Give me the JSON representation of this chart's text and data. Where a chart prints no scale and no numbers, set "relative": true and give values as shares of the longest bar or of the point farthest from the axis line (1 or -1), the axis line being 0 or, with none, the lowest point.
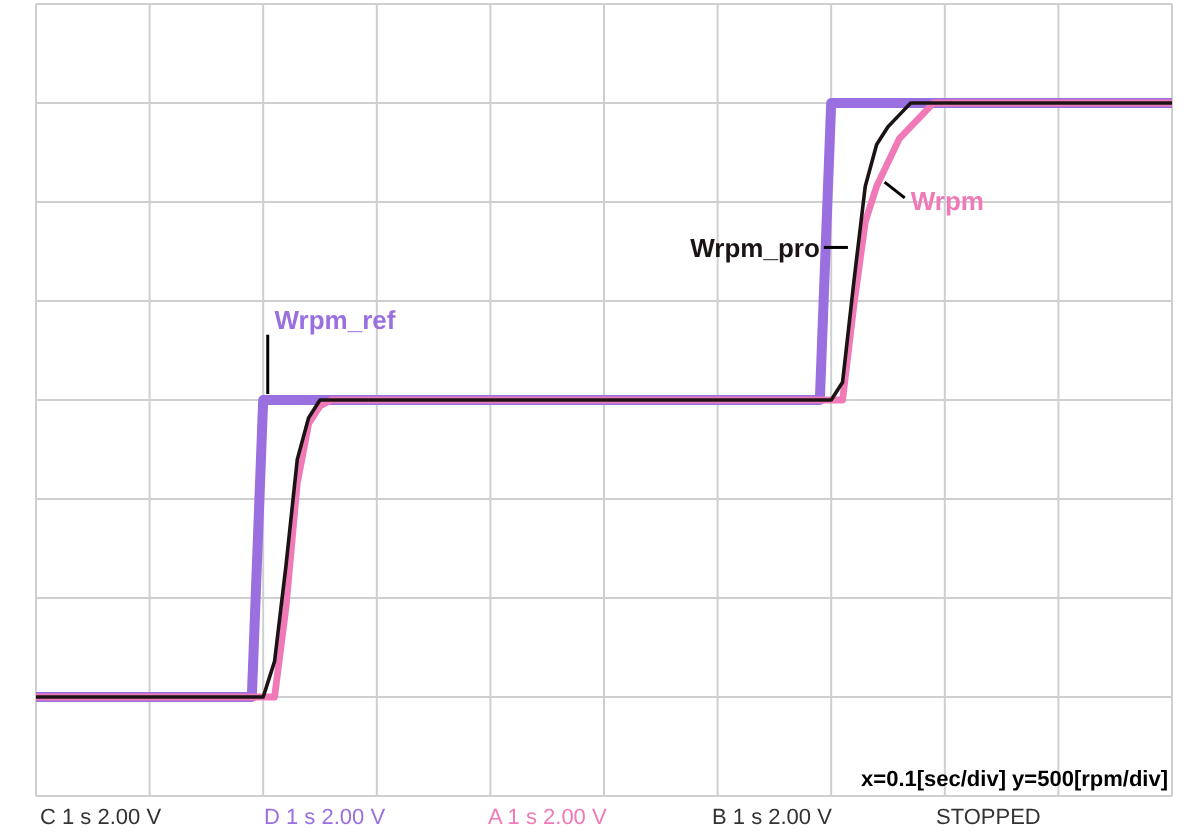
{
  "chart_data": {
    "type": "line",
    "relative": true,
    "grid": true,
    "legend": false,
    "marker": "none",
    "line_style": "solid",
    "categories": [
      null,
      null,
      null,
      null,
      null,
      null,
      null,
      null,
      null,
      null,
      null,
      null,
      null,
      null,
      null,
      null,
      null,
      null,
      null,
      null,
      null,
      null,
      null,
      null,
      null,
      null,
      null,
      null,
      null,
      null,
      null,
      null,
      null,
      null,
      null,
      null,
      null,
      null,
      null,
      null,
      null,
      null,
      null,
      null,
      null,
      null,
      null,
      null,
      null,
      null,
      null,
      null,
      null,
      null,
      null,
      null,
      null,
      null,
      null,
      null,
      null,
      null,
      null,
      null,
      null,
      null,
      null,
      null,
      null,
      null,
      null,
      null,
      null,
      null,
      null,
      null,
      null,
      null,
      null,
      null,
      null,
      null,
      null,
      null,
      null,
      null,
      null,
      null,
      null,
      null,
      null,
      null,
      null,
      null,
      null,
      null,
      null,
      null,
      null,
      null,
      null
    ],
    "annotations": [
      "x=0.1[sec/div] y=500[rpm/div]",
      "C 1 s 2.00 V",
      "D 1 s 2.00 V",
      "A 1 s 2.00 V",
      "B 1 s 2.00 V",
      "STOPPED"
    ],
    "series": [
      {
        "name": "Wrpm_ref",
        "color": "#9a6fe0",
        "values": [
          0,
          0,
          0,
          0,
          0,
          0,
          0,
          0,
          0,
          0,
          0,
          0,
          0,
          0,
          0,
          0,
          0,
          0,
          0,
          0,
          0.5,
          0.5,
          0.5,
          0.5,
          0.5,
          0.5,
          0.5,
          0.5,
          0.5,
          0.5,
          0.5,
          0.5,
          0.5,
          0.5,
          0.5,
          0.5,
          0.5,
          0.5,
          0.5,
          0.5,
          0.5,
          0.5,
          0.5,
          0.5,
          0.5,
          0.5,
          0.5,
          0.5,
          0.5,
          0.5,
          0.5,
          0.5,
          0.5,
          0.5,
          0.5,
          0.5,
          0.5,
          0.5,
          0.5,
          0.5,
          0.5,
          0.5,
          0.5,
          0.5,
          0.5,
          0.5,
          0.5,
          0.5,
          0.5,
          0.5,
          1,
          1,
          1,
          1,
          1,
          1,
          1,
          1,
          1,
          1,
          1,
          1,
          1,
          1,
          1,
          1,
          1,
          1,
          1,
          1,
          1,
          1,
          1,
          1,
          1,
          1,
          1,
          1,
          1,
          1,
          1
        ]
      },
      {
        "name": "Wrpm",
        "color": "#f07ab8",
        "values": [
          0,
          0,
          0,
          0,
          0,
          0,
          0,
          0,
          0,
          0,
          0,
          0,
          0,
          0,
          0,
          0,
          0,
          0,
          0,
          0,
          0,
          0,
          0.15,
          0.36,
          0.46,
          0.49,
          0.5,
          0.5,
          0.5,
          0.5,
          0.5,
          0.5,
          0.5,
          0.5,
          0.5,
          0.5,
          0.5,
          0.5,
          0.5,
          0.5,
          0.5,
          0.5,
          0.5,
          0.5,
          0.5,
          0.5,
          0.5,
          0.5,
          0.5,
          0.5,
          0.5,
          0.5,
          0.5,
          0.5,
          0.5,
          0.5,
          0.5,
          0.5,
          0.5,
          0.5,
          0.5,
          0.5,
          0.5,
          0.5,
          0.5,
          0.5,
          0.5,
          0.5,
          0.5,
          0.5,
          0.5,
          0.5,
          0.66,
          0.8,
          0.86,
          0.9,
          0.94,
          0.96,
          0.98,
          1,
          1,
          1,
          1,
          1,
          1,
          1,
          1,
          1,
          1,
          1,
          1,
          1,
          1,
          1,
          1,
          1,
          1,
          1,
          1,
          1,
          1
        ]
      },
      {
        "name": "Wrpm_pro",
        "color": "#1c1414",
        "values": [
          0,
          0,
          0,
          0,
          0,
          0,
          0,
          0,
          0,
          0,
          0,
          0,
          0,
          0,
          0,
          0,
          0,
          0,
          0,
          0,
          0,
          0.06,
          0.22,
          0.4,
          0.47,
          0.5,
          0.5,
          0.5,
          0.5,
          0.5,
          0.5,
          0.5,
          0.5,
          0.5,
          0.5,
          0.5,
          0.5,
          0.5,
          0.5,
          0.5,
          0.5,
          0.5,
          0.5,
          0.5,
          0.5,
          0.5,
          0.5,
          0.5,
          0.5,
          0.5,
          0.5,
          0.5,
          0.5,
          0.5,
          0.5,
          0.5,
          0.5,
          0.5,
          0.5,
          0.5,
          0.5,
          0.5,
          0.5,
          0.5,
          0.5,
          0.5,
          0.5,
          0.5,
          0.5,
          0.5,
          0.5,
          0.53,
          0.7,
          0.86,
          0.93,
          0.96,
          0.98,
          1,
          1,
          1,
          1,
          1,
          1,
          1,
          1,
          1,
          1,
          1,
          1,
          1,
          1,
          1,
          1,
          1,
          1,
          1,
          1,
          1,
          1,
          1,
          1
        ]
      }
    ]
  }
}
